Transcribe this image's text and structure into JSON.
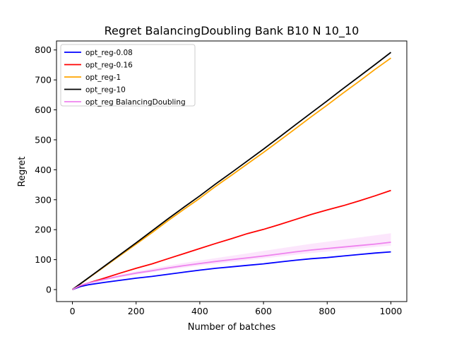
{
  "chart_data": {
    "type": "line",
    "title": "Regret BalancingDoubling Bank B10 N 10_10",
    "xlabel": "Number of batches",
    "ylabel": "Regret",
    "xlim": [
      -50,
      1050
    ],
    "ylim": [
      -40,
      830
    ],
    "xticks": [
      0,
      200,
      400,
      600,
      800,
      1000
    ],
    "yticks": [
      0,
      100,
      200,
      300,
      400,
      500,
      600,
      700,
      800
    ],
    "grid": false,
    "legend_position": "top-left",
    "series": [
      {
        "name": "opt_reg-0.08",
        "color": "#0000ff",
        "x": [
          0,
          25,
          50,
          100,
          150,
          200,
          250,
          300,
          350,
          400,
          450,
          500,
          550,
          600,
          650,
          700,
          750,
          800,
          850,
          900,
          950,
          1000
        ],
        "values": [
          0,
          10,
          16,
          24,
          31,
          38,
          44,
          51,
          58,
          65,
          71,
          76,
          81,
          86,
          92,
          98,
          103,
          107,
          112,
          117,
          122,
          126
        ]
      },
      {
        "name": "opt_reg-0.16",
        "color": "#ff0000",
        "x": [
          0,
          25,
          50,
          100,
          150,
          200,
          250,
          300,
          350,
          400,
          450,
          500,
          550,
          600,
          650,
          700,
          750,
          800,
          850,
          900,
          950,
          1000
        ],
        "values": [
          0,
          13,
          22,
          38,
          55,
          71,
          86,
          103,
          120,
          137,
          154,
          170,
          187,
          201,
          217,
          234,
          251,
          266,
          280,
          296,
          313,
          331
        ]
      },
      {
        "name": "opt_reg-1",
        "color": "#ffa500",
        "x": [
          0,
          50,
          100,
          150,
          200,
          250,
          300,
          350,
          400,
          450,
          500,
          550,
          600,
          650,
          700,
          750,
          800,
          850,
          900,
          950,
          1000
        ],
        "values": [
          0,
          38,
          76,
          114,
          152,
          190,
          230,
          268,
          305,
          345,
          382,
          420,
          458,
          497,
          537,
          577,
          616,
          656,
          695,
          735,
          773
        ]
      },
      {
        "name": "opt_reg-10",
        "color": "#000000",
        "x": [
          0,
          50,
          100,
          150,
          200,
          250,
          300,
          350,
          400,
          450,
          500,
          550,
          600,
          650,
          700,
          750,
          800,
          850,
          900,
          950,
          1000
        ],
        "values": [
          0,
          39,
          78,
          117,
          156,
          196,
          236,
          275,
          313,
          353,
          391,
          430,
          469,
          509,
          550,
          590,
          630,
          671,
          711,
          751,
          792
        ]
      },
      {
        "name": "opt_reg BalancingDoubling",
        "color": "#ee82ee",
        "x": [
          0,
          25,
          50,
          100,
          150,
          200,
          250,
          300,
          350,
          400,
          450,
          500,
          550,
          600,
          650,
          700,
          750,
          800,
          850,
          900,
          950,
          1000
        ],
        "values": [
          0,
          14,
          22,
          34,
          45,
          55,
          63,
          72,
          80,
          87,
          94,
          100,
          106,
          112,
          119,
          126,
          132,
          137,
          142,
          147,
          152,
          158
        ],
        "band_upper": [
          0,
          16,
          25,
          38,
          50,
          61,
          70,
          80,
          89,
          97,
          105,
          113,
          121,
          129,
          137,
          145,
          153,
          160,
          167,
          174,
          181,
          188
        ],
        "band_lower": [
          0,
          12,
          20,
          31,
          41,
          50,
          58,
          66,
          73,
          80,
          86,
          92,
          98,
          104,
          110,
          116,
          122,
          127,
          132,
          137,
          142,
          147
        ]
      }
    ]
  }
}
